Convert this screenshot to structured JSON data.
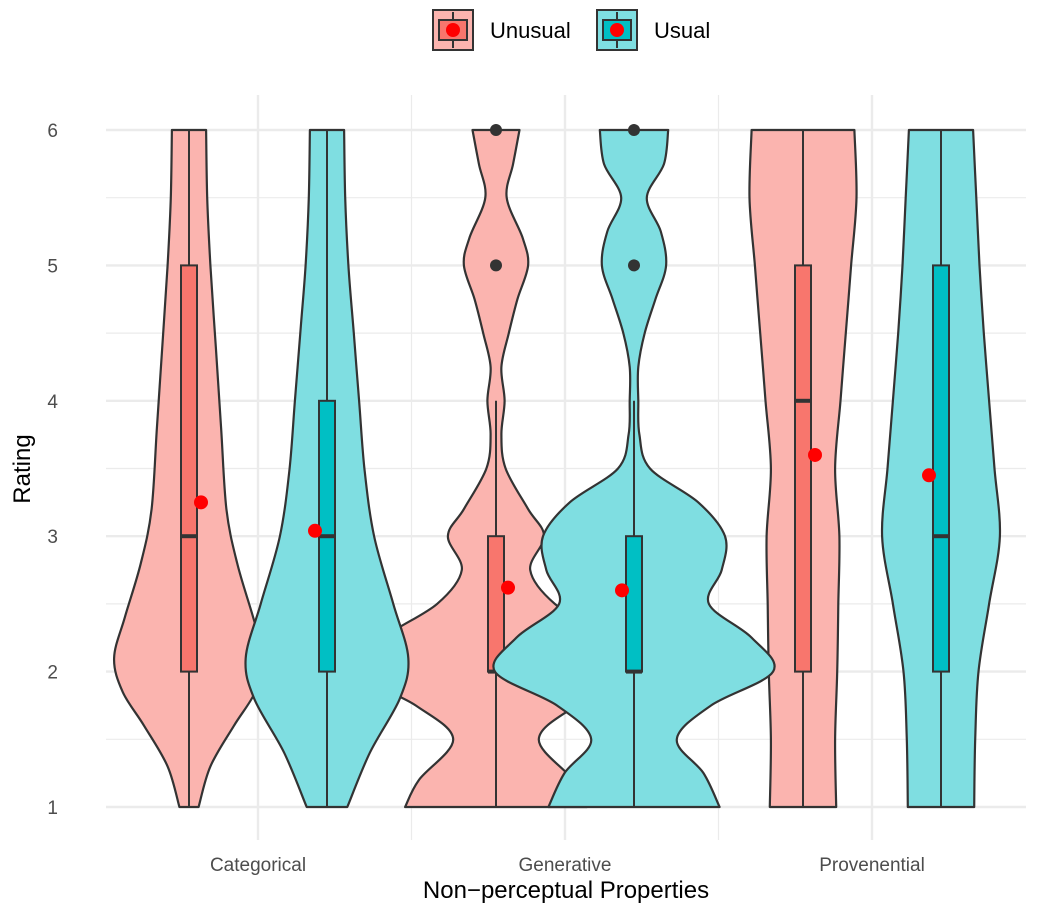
{
  "chart_data": {
    "type": "violin",
    "xlabel": "Non−perceptual Properties",
    "ylabel": "Rating",
    "ylim": [
      1,
      6
    ],
    "yticks": [
      "1",
      "2",
      "3",
      "4",
      "5",
      "6"
    ],
    "categories": [
      "Categorical",
      "Generative",
      "Provenential"
    ],
    "grid": true,
    "legend": {
      "position": "top",
      "entries": [
        {
          "label": "Unusual",
          "fill": "#F8766D"
        },
        {
          "label": "Usual",
          "fill": "#00BFC4"
        }
      ]
    },
    "mean_marker_color": "#FF0000",
    "series": [
      {
        "name": "Unusual",
        "fill": "#F8766D",
        "groups": [
          {
            "category": "Categorical",
            "min": 1,
            "q1": 2,
            "median": 3,
            "q3": 5,
            "max": 6,
            "mean": 3.25,
            "outliers": [],
            "density": [
              [
                1,
                0.09
              ],
              [
                1.3,
                0.2
              ],
              [
                1.6,
                0.42
              ],
              [
                1.85,
                0.62
              ],
              [
                2.1,
                0.7
              ],
              [
                2.4,
                0.6
              ],
              [
                2.8,
                0.45
              ],
              [
                3.2,
                0.35
              ],
              [
                3.8,
                0.3
              ],
              [
                4.4,
                0.25
              ],
              [
                5,
                0.2
              ],
              [
                5.5,
                0.17
              ],
              [
                6,
                0.16
              ]
            ]
          },
          {
            "category": "Generative",
            "min": 1,
            "q1": 2,
            "median": 2,
            "q3": 3,
            "max": 4,
            "mean": 2.62,
            "outliers": [
              5,
              6
            ],
            "density": [
              [
                1,
                0.85
              ],
              [
                1.2,
                0.72
              ],
              [
                1.5,
                0.4
              ],
              [
                1.75,
                0.75
              ],
              [
                2,
                1.3
              ],
              [
                2.25,
                1.05
              ],
              [
                2.5,
                0.55
              ],
              [
                2.75,
                0.32
              ],
              [
                3,
                0.45
              ],
              [
                3.2,
                0.3
              ],
              [
                3.5,
                0.09
              ],
              [
                3.75,
                0.05
              ],
              [
                4,
                0.08
              ],
              [
                4.25,
                0.05
              ],
              [
                4.5,
                0.12
              ],
              [
                4.75,
                0.2
              ],
              [
                5,
                0.3
              ],
              [
                5.2,
                0.25
              ],
              [
                5.5,
                0.1
              ],
              [
                5.75,
                0.16
              ],
              [
                6,
                0.22
              ]
            ]
          },
          {
            "category": "Provenential",
            "min": 1,
            "q1": 2,
            "median": 4,
            "q3": 5,
            "max": 6,
            "mean": 3.6,
            "outliers": [],
            "density": [
              [
                1,
                0.31
              ],
              [
                1.5,
                0.3
              ],
              [
                2,
                0.32
              ],
              [
                2.5,
                0.33
              ],
              [
                3,
                0.34
              ],
              [
                3.5,
                0.3
              ],
              [
                4,
                0.35
              ],
              [
                4.5,
                0.4
              ],
              [
                5,
                0.45
              ],
              [
                5.5,
                0.5
              ],
              [
                6,
                0.48
              ]
            ]
          }
        ]
      },
      {
        "name": "Usual",
        "fill": "#00BFC4",
        "groups": [
          {
            "category": "Categorical",
            "min": 1,
            "q1": 2,
            "median": 3,
            "q3": 4,
            "max": 6,
            "mean": 3.04,
            "outliers": [],
            "density": [
              [
                1,
                0.19
              ],
              [
                1.4,
                0.4
              ],
              [
                1.8,
                0.68
              ],
              [
                2.1,
                0.76
              ],
              [
                2.5,
                0.62
              ],
              [
                3,
                0.44
              ],
              [
                3.5,
                0.35
              ],
              [
                4,
                0.3
              ],
              [
                4.5,
                0.25
              ],
              [
                5,
                0.2
              ],
              [
                5.5,
                0.17
              ],
              [
                6,
                0.16
              ]
            ]
          },
          {
            "category": "Generative",
            "min": 1,
            "q1": 2,
            "median": 2,
            "q3": 3,
            "max": 4,
            "mean": 2.6,
            "outliers": [
              5,
              6
            ],
            "density": [
              [
                1,
                0.8
              ],
              [
                1.25,
                0.65
              ],
              [
                1.5,
                0.4
              ],
              [
                1.75,
                0.72
              ],
              [
                2,
                1.3
              ],
              [
                2.25,
                1.1
              ],
              [
                2.5,
                0.7
              ],
              [
                2.75,
                0.82
              ],
              [
                3,
                0.85
              ],
              [
                3.25,
                0.6
              ],
              [
                3.5,
                0.15
              ],
              [
                3.75,
                0.05
              ],
              [
                4,
                0.04
              ],
              [
                4.25,
                0.04
              ],
              [
                4.5,
                0.1
              ],
              [
                4.75,
                0.2
              ],
              [
                5,
                0.3
              ],
              [
                5.25,
                0.25
              ],
              [
                5.5,
                0.12
              ],
              [
                5.75,
                0.28
              ],
              [
                6,
                0.32
              ]
            ]
          },
          {
            "category": "Provenential",
            "min": 1,
            "q1": 2,
            "median": 3,
            "q3": 5,
            "max": 6,
            "mean": 3.45,
            "outliers": [],
            "density": [
              [
                1,
                0.31
              ],
              [
                1.5,
                0.32
              ],
              [
                2,
                0.35
              ],
              [
                2.5,
                0.45
              ],
              [
                3,
                0.55
              ],
              [
                3.5,
                0.5
              ],
              [
                4,
                0.45
              ],
              [
                4.5,
                0.4
              ],
              [
                5,
                0.36
              ],
              [
                5.5,
                0.33
              ],
              [
                6,
                0.3
              ]
            ]
          }
        ]
      }
    ]
  }
}
